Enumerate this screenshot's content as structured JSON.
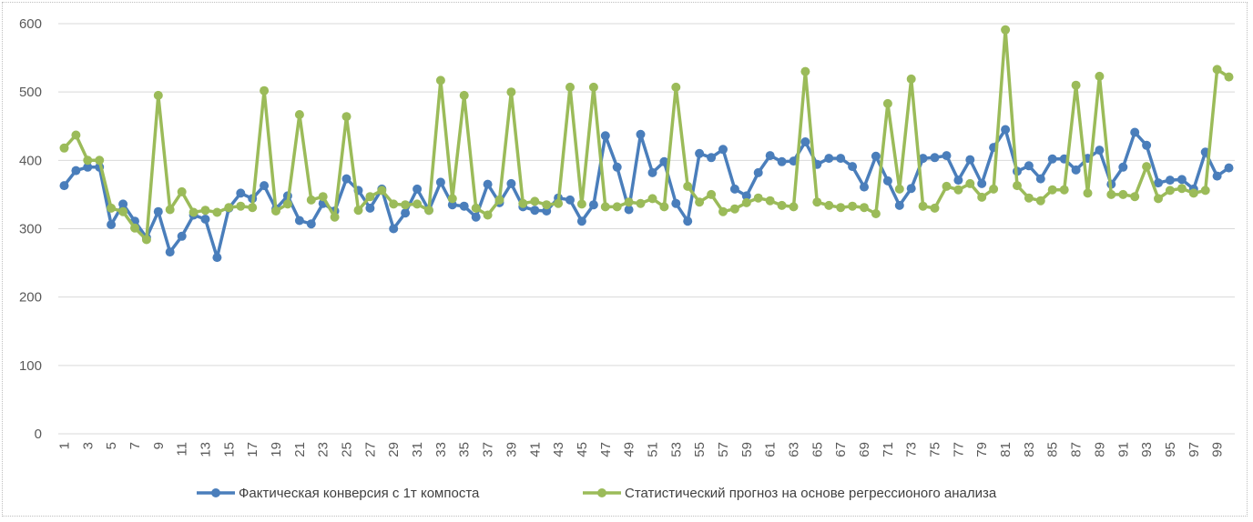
{
  "chart_data": {
    "type": "line",
    "title": "",
    "xlabel": "",
    "ylabel": "",
    "ylim": [
      0,
      600
    ],
    "yticks": [
      0,
      100,
      200,
      300,
      400,
      500,
      600
    ],
    "grid": true,
    "legend_position": "bottom",
    "x": [
      1,
      2,
      3,
      4,
      5,
      6,
      7,
      8,
      9,
      10,
      11,
      12,
      13,
      14,
      15,
      16,
      17,
      18,
      19,
      20,
      21,
      22,
      23,
      24,
      25,
      26,
      27,
      28,
      29,
      30,
      31,
      32,
      33,
      34,
      35,
      36,
      37,
      38,
      39,
      40,
      41,
      42,
      43,
      44,
      45,
      46,
      47,
      48,
      49,
      50,
      51,
      52,
      53,
      54,
      55,
      56,
      57,
      58,
      59,
      60,
      61,
      62,
      63,
      64,
      65,
      66,
      67,
      68,
      69,
      70,
      71,
      72,
      73,
      74,
      75,
      76,
      77,
      78,
      79,
      80,
      81,
      82,
      83,
      84,
      85,
      86,
      87,
      88,
      89,
      90,
      91,
      92,
      93,
      94,
      95,
      96,
      97,
      98,
      99,
      100
    ],
    "xtick_labels": [
      "1",
      "3",
      "5",
      "7",
      "9",
      "11",
      "13",
      "15",
      "17",
      "19",
      "21",
      "23",
      "25",
      "27",
      "29",
      "31",
      "33",
      "35",
      "37",
      "39",
      "41",
      "43",
      "45",
      "47",
      "49",
      "51",
      "53",
      "55",
      "57",
      "59",
      "61",
      "63",
      "65",
      "67",
      "69",
      "71",
      "73",
      "75",
      "77",
      "79",
      "81",
      "83",
      "85",
      "87",
      "89",
      "91",
      "93",
      "95",
      "97",
      "99"
    ],
    "series": [
      {
        "name": "Фактическая конверсия с  1т компоста",
        "color": "#4a7ebb",
        "values": [
          363,
          385,
          390,
          390,
          306,
          336,
          311,
          287,
          325,
          266,
          289,
          320,
          314,
          258,
          330,
          352,
          344,
          363,
          329,
          348,
          312,
          307,
          337,
          326,
          373,
          356,
          330,
          358,
          300,
          323,
          358,
          327,
          368,
          335,
          333,
          317,
          365,
          338,
          366,
          332,
          327,
          326,
          345,
          342,
          311,
          335,
          436,
          390,
          328,
          438,
          382,
          398,
          337,
          311,
          410,
          404,
          416,
          358,
          348,
          382,
          407,
          398,
          399,
          427,
          394,
          403,
          403,
          391,
          361,
          406,
          370,
          334,
          359,
          403,
          404,
          407,
          371,
          401,
          366,
          419,
          445,
          384,
          392,
          373,
          402,
          402,
          386,
          403,
          415,
          365,
          390,
          441,
          422,
          367,
          371,
          372,
          358,
          412,
          377,
          389
        ]
      },
      {
        "name": "Статистический прогноз на основе регрессионого анализа",
        "color": "#9bbb59",
        "values": [
          418,
          437,
          400,
          400,
          330,
          325,
          301,
          284,
          495,
          328,
          354,
          324,
          327,
          324,
          331,
          333,
          331,
          502,
          326,
          336,
          467,
          342,
          347,
          317,
          464,
          327,
          347,
          356,
          336,
          335,
          336,
          327,
          517,
          344,
          495,
          330,
          320,
          342,
          500,
          337,
          340,
          335,
          337,
          507,
          336,
          507,
          332,
          332,
          339,
          337,
          344,
          332,
          507,
          362,
          339,
          350,
          325,
          329,
          338,
          345,
          341,
          334,
          332,
          530,
          339,
          334,
          331,
          333,
          331,
          322,
          483,
          358,
          519,
          333,
          330,
          362,
          357,
          366,
          346,
          358,
          591,
          363,
          345,
          341,
          357,
          357,
          510,
          352,
          523,
          350,
          350,
          347,
          391,
          344,
          356,
          359,
          352,
          356,
          533,
          522
        ]
      }
    ]
  }
}
